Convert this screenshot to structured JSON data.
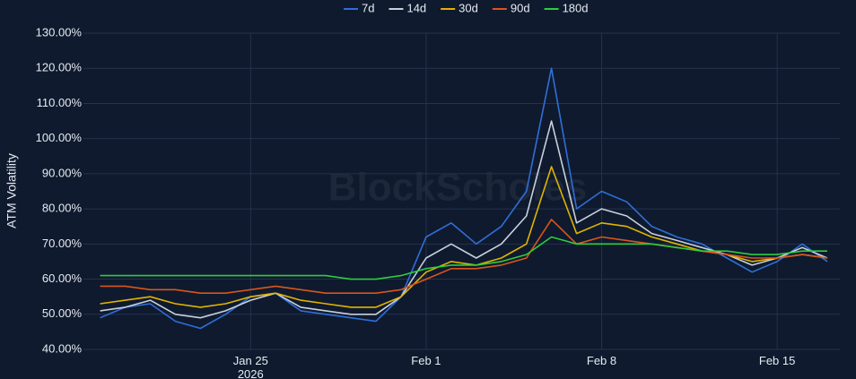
{
  "chart_data": {
    "type": "line",
    "ylabel": "ATM Volatility",
    "watermark": "BlockScholes",
    "x": [
      "2026-01-19",
      "2026-01-20",
      "2026-01-21",
      "2026-01-22",
      "2026-01-23",
      "2026-01-24",
      "2026-01-25",
      "2026-01-26",
      "2026-01-27",
      "2026-01-28",
      "2026-01-29",
      "2026-01-30",
      "2026-01-31",
      "2026-02-01",
      "2026-02-02",
      "2026-02-03",
      "2026-02-04",
      "2026-02-05",
      "2026-02-06",
      "2026-02-07",
      "2026-02-08",
      "2026-02-09",
      "2026-02-10",
      "2026-02-11",
      "2026-02-12",
      "2026-02-13",
      "2026-02-14",
      "2026-02-15",
      "2026-02-16",
      "2026-02-17"
    ],
    "xlim": [
      "2026-01-18T08:00:00Z",
      "2026-02-17T12:00:00Z"
    ],
    "xticks": [
      {
        "value": "2026-01-25",
        "label": "Jan 25\n2026"
      },
      {
        "value": "2026-02-01",
        "label": "Feb 1"
      },
      {
        "value": "2026-02-08",
        "label": "Feb 8"
      },
      {
        "value": "2026-02-15",
        "label": "Feb 15"
      }
    ],
    "ylim": [
      40,
      130
    ],
    "yticks": [
      {
        "value": 40,
        "label": "40.00%"
      },
      {
        "value": 50,
        "label": "50.00%"
      },
      {
        "value": 60,
        "label": "60.00%"
      },
      {
        "value": 70,
        "label": "70.00%"
      },
      {
        "value": 80,
        "label": "80.00%"
      },
      {
        "value": 90,
        "label": "90.00%"
      },
      {
        "value": 100,
        "label": "100.00%"
      },
      {
        "value": 110,
        "label": "110.00%"
      },
      {
        "value": 120,
        "label": "120.00%"
      },
      {
        "value": 130,
        "label": "130.00%"
      }
    ],
    "grid": true,
    "legend": "top",
    "series": [
      {
        "name": "7d",
        "color": "#2f6fd8",
        "values": [
          49,
          52,
          53,
          48,
          46,
          50,
          55,
          56,
          51,
          50,
          49,
          48,
          55,
          72,
          76,
          70,
          75,
          85,
          120,
          80,
          85,
          82,
          75,
          72,
          70,
          66,
          62,
          65,
          70,
          65
        ]
      },
      {
        "name": "14d",
        "color": "#c8d0dc",
        "values": [
          51,
          52,
          54,
          50,
          49,
          51,
          54,
          56,
          52,
          51,
          50,
          50,
          55,
          66,
          70,
          66,
          70,
          78,
          105,
          76,
          80,
          78,
          73,
          71,
          69,
          67,
          64,
          66,
          69,
          66
        ]
      },
      {
        "name": "30d",
        "color": "#e0b400",
        "values": [
          53,
          54,
          55,
          53,
          52,
          53,
          55,
          56,
          54,
          53,
          52,
          52,
          55,
          62,
          65,
          64,
          66,
          70,
          92,
          73,
          76,
          75,
          72,
          70,
          68,
          67,
          65,
          66,
          67,
          66
        ]
      },
      {
        "name": "90d",
        "color": "#d9561c",
        "values": [
          58,
          58,
          57,
          57,
          56,
          56,
          57,
          58,
          57,
          56,
          56,
          56,
          57,
          60,
          63,
          63,
          64,
          66,
          77,
          70,
          72,
          71,
          70,
          69,
          68,
          67,
          66,
          66,
          67,
          66
        ]
      },
      {
        "name": "180d",
        "color": "#2ecc40",
        "values": [
          61,
          61,
          61,
          61,
          61,
          61,
          61,
          61,
          61,
          61,
          60,
          60,
          61,
          63,
          64,
          64,
          65,
          67,
          72,
          70,
          70,
          70,
          70,
          69,
          68,
          68,
          67,
          67,
          68,
          68
        ]
      }
    ]
  }
}
